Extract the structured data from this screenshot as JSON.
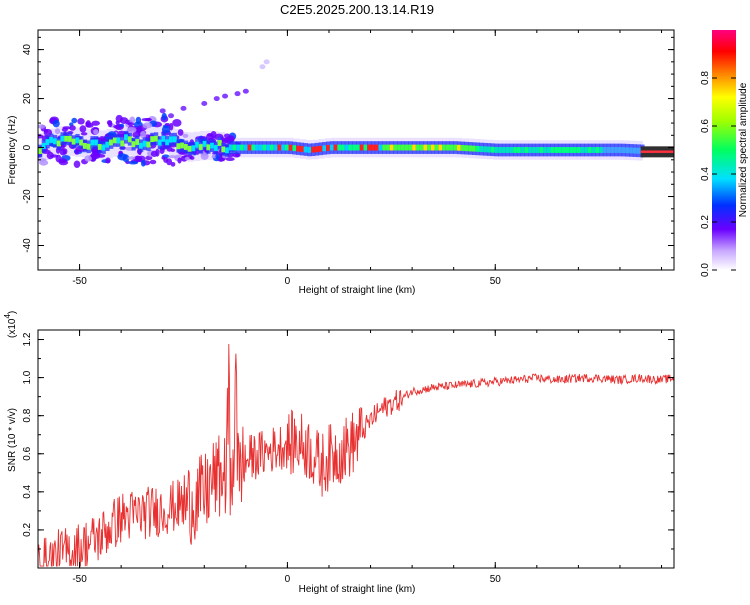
{
  "title": "C2E5.2025.200.13.14.R19",
  "chart_data": [
    {
      "type": "heatmap",
      "xlabel": "Height of straight line (km)",
      "ylabel": "Frequency (Hz)",
      "xlim": [
        -60,
        93
      ],
      "ylim": [
        -50,
        48
      ],
      "xticks": [
        -50,
        0,
        50
      ],
      "yticks": [
        -40,
        -20,
        0,
        20,
        40
      ],
      "colorbar": {
        "label": "Normalized spectral amplitude",
        "range": [
          0,
          1
        ],
        "ticks": [
          "0.0",
          "0.2",
          "0.4",
          "0.6",
          "0.8"
        ]
      },
      "ridge": [
        {
          "x": -60,
          "y": 0
        },
        {
          "x": -55,
          "y": 3
        },
        {
          "x": -50,
          "y": 2
        },
        {
          "x": -45,
          "y": 1
        },
        {
          "x": -40,
          "y": 3
        },
        {
          "x": -35,
          "y": 2
        },
        {
          "x": -30,
          "y": 4
        },
        {
          "x": -25,
          "y": 0
        },
        {
          "x": -20,
          "y": 1
        },
        {
          "x": -15,
          "y": 0
        },
        {
          "x": -10,
          "y": 0
        },
        {
          "x": 0,
          "y": 0
        },
        {
          "x": 5,
          "y": -1
        },
        {
          "x": 10,
          "y": 0
        },
        {
          "x": 20,
          "y": 0
        },
        {
          "x": 30,
          "y": 0
        },
        {
          "x": 40,
          "y": 0
        },
        {
          "x": 50,
          "y": -1
        },
        {
          "x": 60,
          "y": -1
        },
        {
          "x": 70,
          "y": -1
        },
        {
          "x": 80,
          "y": -1
        },
        {
          "x": 93,
          "y": -2
        }
      ],
      "outliers": [
        {
          "x": -30,
          "y": 15
        },
        {
          "x": -28,
          "y": 13
        },
        {
          "x": -25,
          "y": 16
        },
        {
          "x": -20,
          "y": 18
        },
        {
          "x": -17,
          "y": 20
        },
        {
          "x": -15,
          "y": 21
        },
        {
          "x": -12,
          "y": 22
        },
        {
          "x": -10,
          "y": 23
        },
        {
          "x": -6,
          "y": 33
        },
        {
          "x": -5,
          "y": 35
        }
      ]
    },
    {
      "type": "line",
      "xlabel": "Height of straight line (km)",
      "ylabel": "SNR (10 * v/v)",
      "y_multiplier": "(x10",
      "y_multiplier_exp": "4",
      "y_multiplier_close": ")",
      "xlim": [
        -60,
        93
      ],
      "ylim": [
        0,
        1.25
      ],
      "xticks": [
        -50,
        0,
        50
      ],
      "yticks": [
        "0.2",
        "0.4",
        "0.6",
        "0.8",
        "1.0",
        "1.2"
      ],
      "color": "#e83030",
      "series": [
        {
          "x": [
            -60,
            -55,
            -50,
            -45,
            -40,
            -35,
            -30,
            -25,
            -20,
            -18,
            -16,
            -14,
            -12,
            -10,
            -8,
            -5,
            -2,
            0,
            2,
            5,
            8,
            10,
            12,
            15,
            18,
            20,
            22,
            25,
            28,
            30,
            35,
            40,
            45,
            50,
            55,
            60,
            65,
            70,
            75,
            80,
            85,
            90,
            93
          ],
          "values": [
            0.02,
            0.08,
            0.12,
            0.18,
            0.28,
            0.3,
            0.32,
            0.35,
            0.4,
            0.48,
            0.5,
            0.52,
            0.55,
            0.58,
            0.6,
            0.62,
            0.65,
            0.66,
            0.68,
            0.65,
            0.55,
            0.6,
            0.62,
            0.66,
            0.72,
            0.78,
            0.83,
            0.87,
            0.9,
            0.93,
            0.95,
            0.96,
            0.97,
            0.98,
            0.99,
            1.0,
            0.99,
            1.0,
            1.0,
            0.99,
            1.0,
            0.99,
            1.0
          ]
        }
      ]
    }
  ]
}
